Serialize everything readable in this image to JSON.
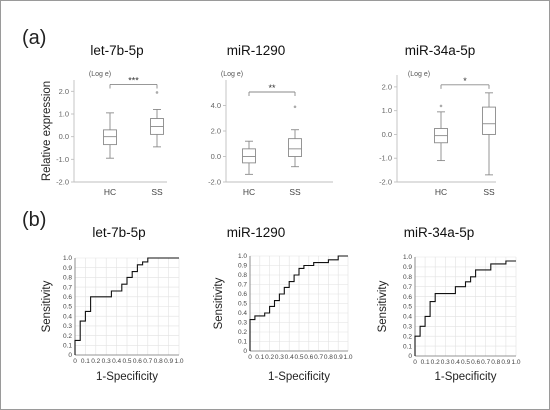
{
  "panel_labels": {
    "a": "(a)",
    "b": "(b)"
  },
  "chart_data": [
    {
      "type": "box",
      "title": "let-7b-5p",
      "unit": "(Log e)",
      "ylabel": "Relative expression",
      "ylim": [
        -2.0,
        2.5
      ],
      "yticks": [
        -2.0,
        -1.0,
        0.0,
        1.0,
        2.0
      ],
      "categories": [
        "HC",
        "SS"
      ],
      "boxes": [
        {
          "category": "HC",
          "whisker_low": -0.95,
          "q1": -0.35,
          "median": 0.0,
          "q3": 0.3,
          "whisker_high": 1.05,
          "outliers": []
        },
        {
          "category": "SS",
          "whisker_low": -0.45,
          "q1": 0.1,
          "median": 0.45,
          "q3": 0.8,
          "whisker_high": 1.2,
          "outliers": [
            1.95
          ]
        }
      ],
      "significance": "***"
    },
    {
      "type": "box",
      "title": "miR-1290",
      "unit": "(Log e)",
      "ylabel": "",
      "ylim": [
        -2.0,
        6.0
      ],
      "yticks": [
        -2.0,
        0.0,
        2.0,
        4.0
      ],
      "categories": [
        "HC",
        "SS"
      ],
      "boxes": [
        {
          "category": "HC",
          "whisker_low": -1.4,
          "q1": -0.5,
          "median": 0.0,
          "q3": 0.6,
          "whisker_high": 1.2,
          "outliers": []
        },
        {
          "category": "SS",
          "whisker_low": -0.8,
          "q1": 0.0,
          "median": 0.6,
          "q3": 1.4,
          "whisker_high": 2.1,
          "outliers": [
            3.9
          ]
        }
      ],
      "significance": "**"
    },
    {
      "type": "box",
      "title": "miR-34a-5p",
      "unit": "(Log e)",
      "ylabel": "",
      "ylim": [
        -2.0,
        2.5
      ],
      "yticks": [
        -2.0,
        -1.0,
        0.0,
        1.0,
        2.0
      ],
      "categories": [
        "HC",
        "SS"
      ],
      "boxes": [
        {
          "category": "HC",
          "whisker_low": -1.1,
          "q1": -0.35,
          "median": -0.05,
          "q3": 0.25,
          "whisker_high": 0.95,
          "outliers": [
            1.2
          ]
        },
        {
          "category": "SS",
          "whisker_low": -1.7,
          "q1": 0.0,
          "median": 0.45,
          "q3": 1.15,
          "whisker_high": 1.75,
          "outliers": []
        }
      ],
      "significance": "*"
    },
    {
      "type": "line",
      "title": "let-7b-5p",
      "xlabel": "1-Specificity",
      "ylabel": "Sensitivity",
      "xlim": [
        0,
        1.0
      ],
      "ylim": [
        0,
        1.0
      ],
      "ticks": [
        "0",
        "0.1",
        "0.2",
        "0.3",
        "0.4",
        "0.5",
        "0.6",
        "0.7",
        "0.8",
        "0.9",
        "1.0"
      ],
      "grid": true,
      "x": [
        0,
        0,
        0.05,
        0.05,
        0.1,
        0.1,
        0.15,
        0.15,
        0.35,
        0.35,
        0.45,
        0.45,
        0.5,
        0.5,
        0.55,
        0.55,
        0.6,
        0.6,
        0.65,
        0.65,
        0.7,
        0.7,
        1.0
      ],
      "y": [
        0,
        0.15,
        0.15,
        0.35,
        0.35,
        0.45,
        0.45,
        0.6,
        0.6,
        0.66,
        0.66,
        0.73,
        0.73,
        0.8,
        0.8,
        0.86,
        0.86,
        0.93,
        0.93,
        0.96,
        0.96,
        1.0,
        1.0
      ]
    },
    {
      "type": "line",
      "title": "miR-1290",
      "xlabel": "1-Specificity",
      "ylabel": "Sensitivity",
      "xlim": [
        0,
        1.0
      ],
      "ylim": [
        0,
        1.0
      ],
      "ticks": [
        "0",
        "0.1",
        "0.2",
        "0.3",
        "0.4",
        "0.5",
        "0.6",
        "0.7",
        "0.8",
        "0.9",
        "1.0"
      ],
      "grid": true,
      "x": [
        0,
        0,
        0.05,
        0.05,
        0.15,
        0.15,
        0.2,
        0.2,
        0.25,
        0.25,
        0.3,
        0.3,
        0.35,
        0.35,
        0.4,
        0.4,
        0.45,
        0.45,
        0.5,
        0.5,
        0.55,
        0.55,
        0.65,
        0.65,
        0.8,
        0.8,
        0.9,
        0.9,
        1.0
      ],
      "y": [
        0,
        0.33,
        0.33,
        0.37,
        0.37,
        0.4,
        0.4,
        0.47,
        0.47,
        0.53,
        0.53,
        0.6,
        0.6,
        0.67,
        0.67,
        0.73,
        0.73,
        0.8,
        0.8,
        0.87,
        0.87,
        0.9,
        0.9,
        0.93,
        0.93,
        0.96,
        0.96,
        1.0,
        1.0
      ]
    },
    {
      "type": "line",
      "title": "miR-34a-5p",
      "xlabel": "1-Specificity",
      "ylabel": "Sensitivity",
      "xlim": [
        0,
        1.0
      ],
      "ylim": [
        0,
        1.0
      ],
      "ticks": [
        "0",
        "0.1",
        "0.2",
        "0.3",
        "0.4",
        "0.5",
        "0.6",
        "0.7",
        "0.8",
        "0.9",
        "1.0"
      ],
      "grid": true,
      "x": [
        0,
        0,
        0.05,
        0.05,
        0.1,
        0.1,
        0.15,
        0.15,
        0.2,
        0.2,
        0.4,
        0.4,
        0.5,
        0.5,
        0.55,
        0.55,
        0.6,
        0.6,
        0.75,
        0.75,
        0.9,
        0.9,
        1.0
      ],
      "y": [
        0,
        0.2,
        0.2,
        0.3,
        0.3,
        0.4,
        0.4,
        0.55,
        0.55,
        0.63,
        0.63,
        0.7,
        0.7,
        0.75,
        0.75,
        0.8,
        0.8,
        0.87,
        0.87,
        0.93,
        0.93,
        0.96,
        0.96
      ]
    }
  ]
}
